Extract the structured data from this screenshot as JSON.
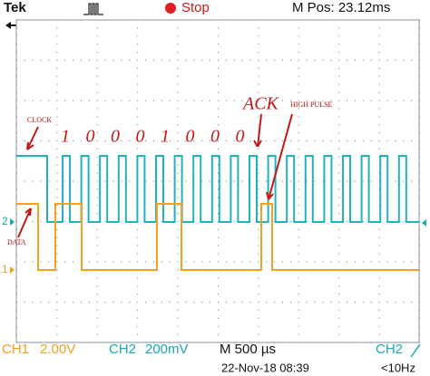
{
  "header": {
    "brand": "Tek",
    "status": "Stop",
    "position": "M Pos: 23.12ms"
  },
  "annotations": {
    "clock": "CLOCK",
    "data": "DATA",
    "high_pulse": "HIGH PULSE",
    "ack": "ACK",
    "bits": [
      "1",
      "0",
      "0",
      "0",
      "1",
      "0",
      "0",
      "0"
    ]
  },
  "markers": {
    "ch2": "2",
    "ch1": "1"
  },
  "footer": {
    "ch1": "CH1",
    "ch1_scale": "2.00V",
    "ch2": "CH2",
    "ch2_scale": "200mV",
    "timebase": "M 500 µs",
    "trigger_source": "CH2",
    "trigger_freq": "<10Hz",
    "timestamp": "22-Nov-18 08:39"
  }
}
